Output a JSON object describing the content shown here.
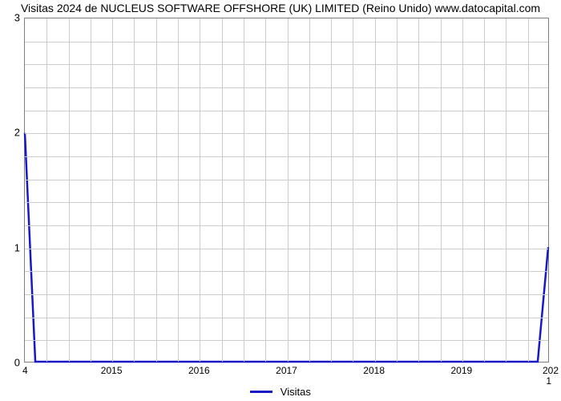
{
  "title": "Visitas 2024 de NUCLEUS SOFTWARE OFFSHORE (UK) LIMITED (Reino Unido) www.datocapital.com",
  "chart": {
    "type": "line",
    "background_color": "#ffffff",
    "grid_color": "#cccccc",
    "border_color": "#808080",
    "title_fontsize": 14,
    "tick_fontsize": 12,
    "line_color": "#1918c8",
    "line_width": 2.5,
    "ylim": [
      0,
      3
    ],
    "ytick_step": 1,
    "yticks": [
      "0",
      "1",
      "2",
      "3"
    ],
    "y_minor_per_major": 5,
    "xlim": [
      2014,
      2020
    ],
    "xticks": [
      "2015",
      "2016",
      "2017",
      "2018",
      "2019"
    ],
    "xtick_positions": [
      2015,
      2016,
      2017,
      2018,
      2019
    ],
    "x_minor_per_major": 4,
    "start_marker": "4",
    "end_marker": "1",
    "right_label": "202",
    "data": {
      "x": [
        2014.0,
        2014.12,
        2019.88,
        2020.0
      ],
      "y": [
        2.0,
        0.0,
        0.0,
        1.0
      ]
    },
    "legend": {
      "label": "Visitas",
      "swatch_color": "#1918c8",
      "position": "bottom-center"
    }
  }
}
